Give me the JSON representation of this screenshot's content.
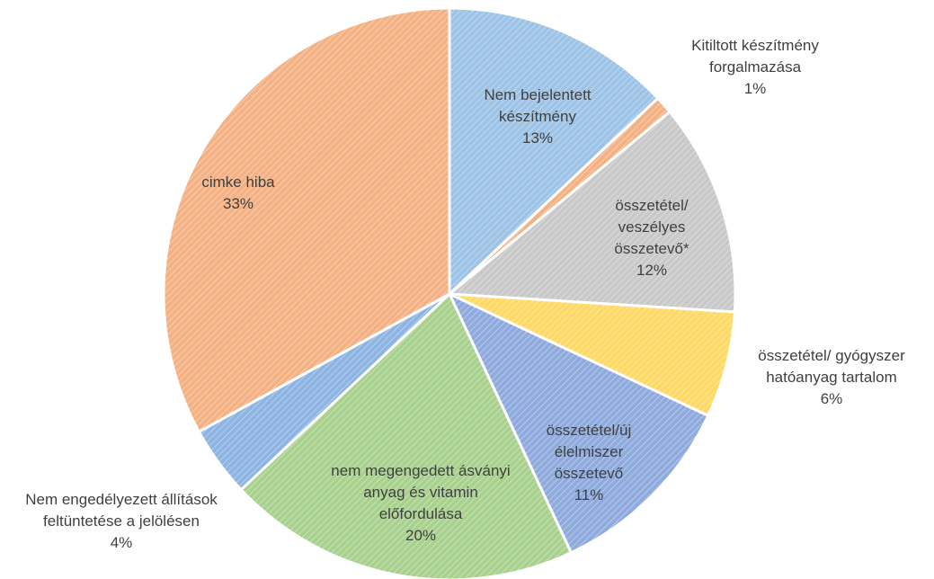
{
  "chart_data": {
    "type": "pie",
    "categories": [
      "Nem bejelentett készítmény",
      "Kitiltott készítmény forgalmazása",
      "összetétel/ veszélyes összetevő*",
      "összetétel/ gyógyszer hatóanyag tartalom",
      "összetétel/új élelmiszer összetevő",
      "nem megengedett ásványi anyag és vitamin előfordulása",
      "Nem engedélyezett állítások feltüntetése a jelölésen",
      "cimke hiba"
    ],
    "values": [
      13,
      1,
      12,
      6,
      11,
      20,
      4,
      33
    ],
    "value_labels": [
      "13%",
      "1%",
      "12%",
      "6%",
      "11%",
      "20%",
      "4%",
      "33%"
    ],
    "colors": [
      "#9dc3e6",
      "#f4b183",
      "#c9c9c9",
      "#ffd966",
      "#8faadc",
      "#a9d18e",
      "#8db4e2",
      "#f4b183"
    ]
  }
}
